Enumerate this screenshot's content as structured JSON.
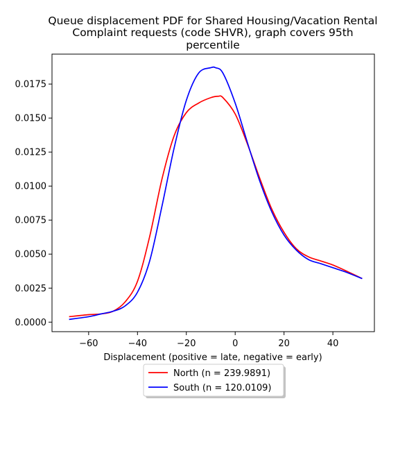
{
  "chart_data": {
    "type": "line",
    "title": "Queue displacement PDF for Shared Housing/Vacation Rental Complaint  requests (code SHVR), graph covers 95th percentile",
    "title_lines": [
      "Queue displacement PDF for Shared Housing/Vacation Rental",
      "Complaint  requests (code SHVR), graph covers 95th",
      "percentile"
    ],
    "xlabel": "Displacement (positive = late, negative = early)",
    "ylabel": "",
    "xlim": [
      -75,
      57
    ],
    "ylim": [
      -0.0007,
      0.0197
    ],
    "x_ticks": [
      -60,
      -40,
      -20,
      0,
      20,
      40
    ],
    "x_tick_labels": [
      "−60",
      "−40",
      "−20",
      "0",
      "20",
      "40"
    ],
    "y_ticks": [
      0.0,
      0.0025,
      0.005,
      0.0075,
      0.01,
      0.0125,
      0.015,
      0.0175
    ],
    "y_tick_labels": [
      "0.0000",
      "0.0025",
      "0.0050",
      "0.0075",
      "0.0100",
      "0.0125",
      "0.0150",
      "0.0175"
    ],
    "grid": false,
    "legend_position": "bottom-center, below axes",
    "series": [
      {
        "name": "North (n = 239.9891)",
        "color": "#ff0000",
        "x": [
          -68,
          -60,
          -55,
          -50,
          -45,
          -40,
          -35,
          -30,
          -25,
          -20,
          -15,
          -10,
          -7,
          -5,
          0,
          5,
          10,
          15,
          20,
          25,
          30,
          35,
          40,
          45,
          52
        ],
        "y": [
          0.0004,
          0.00055,
          0.0006,
          0.0008,
          0.0015,
          0.003,
          0.0063,
          0.0105,
          0.0137,
          0.0154,
          0.0161,
          0.0165,
          0.0166,
          0.0165,
          0.0153,
          0.0131,
          0.0106,
          0.0083,
          0.0066,
          0.0054,
          0.0048,
          0.0045,
          0.0042,
          0.0038,
          0.0032
        ]
      },
      {
        "name": "South (n = 120.0109)",
        "color": "#0000ff",
        "x": [
          -68,
          -60,
          -55,
          -50,
          -45,
          -40,
          -35,
          -30,
          -25,
          -20,
          -15,
          -10,
          -8,
          -5,
          0,
          5,
          10,
          15,
          20,
          25,
          30,
          35,
          40,
          45,
          52
        ],
        "y": [
          0.0002,
          0.0004,
          0.0006,
          0.0008,
          0.0012,
          0.0022,
          0.0045,
          0.0085,
          0.0128,
          0.0163,
          0.0183,
          0.0187,
          0.0187,
          0.0183,
          0.0161,
          0.0132,
          0.0104,
          0.0081,
          0.0064,
          0.0053,
          0.0046,
          0.0043,
          0.004,
          0.0037,
          0.0032
        ]
      }
    ]
  }
}
